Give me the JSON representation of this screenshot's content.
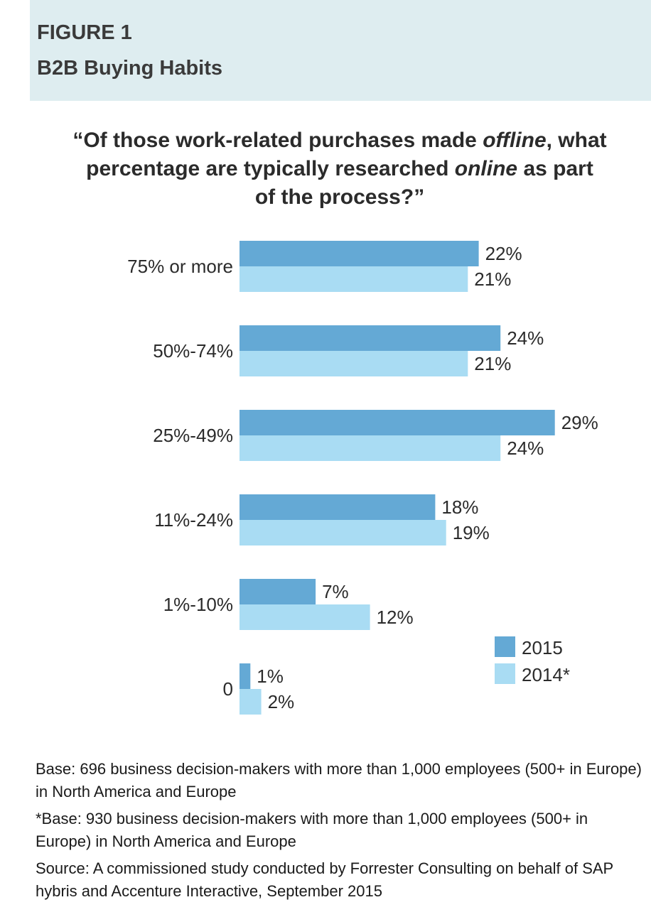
{
  "header": {
    "figure_label": "FIGURE 1",
    "figure_title": "B2B Buying Habits"
  },
  "question": {
    "open_quote": "“",
    "close_quote": "”",
    "line1_a": "Of those work-related purchases made ",
    "line1_em": "offline",
    "line1_b": ", what",
    "line2_a": "percentage are typically researched ",
    "line2_em": "online",
    "line2_b": " as part",
    "line3": "of the process?"
  },
  "colors": {
    "series_2015": "#64a9d5",
    "series_2014": "#a9dcf3",
    "header_bg": "#deedf0"
  },
  "chart_data": {
    "type": "bar",
    "orientation": "horizontal",
    "categories": [
      "75% or more",
      "50%-74%",
      "25%-49%",
      "11%-24%",
      "1%-10%",
      "0"
    ],
    "series": [
      {
        "name": "2015",
        "values": [
          22,
          24,
          29,
          18,
          7,
          1
        ],
        "labels": [
          "22%",
          "24%",
          "29%",
          "18%",
          "7%",
          "1%"
        ]
      },
      {
        "name": "2014*",
        "values": [
          21,
          21,
          24,
          19,
          12,
          2
        ],
        "labels": [
          "21%",
          "21%",
          "24%",
          "19%",
          "12%",
          "2%"
        ]
      }
    ],
    "xlim": [
      0,
      29
    ],
    "title": "",
    "xlabel": "",
    "ylabel": "",
    "grid": false,
    "legend": "bottom-right"
  },
  "notes": {
    "base": "Base: 696 business decision-makers with more than 1,000 employees (500+ in Europe) in North America and Europe",
    "base_2014": "*Base: 930 business decision-makers with more than 1,000 employees (500+ in Europe) in North America and Europe",
    "source": "Source: A commissioned study conducted by Forrester Consulting on behalf of SAP hybris and Accenture Interactive, September 2015"
  }
}
